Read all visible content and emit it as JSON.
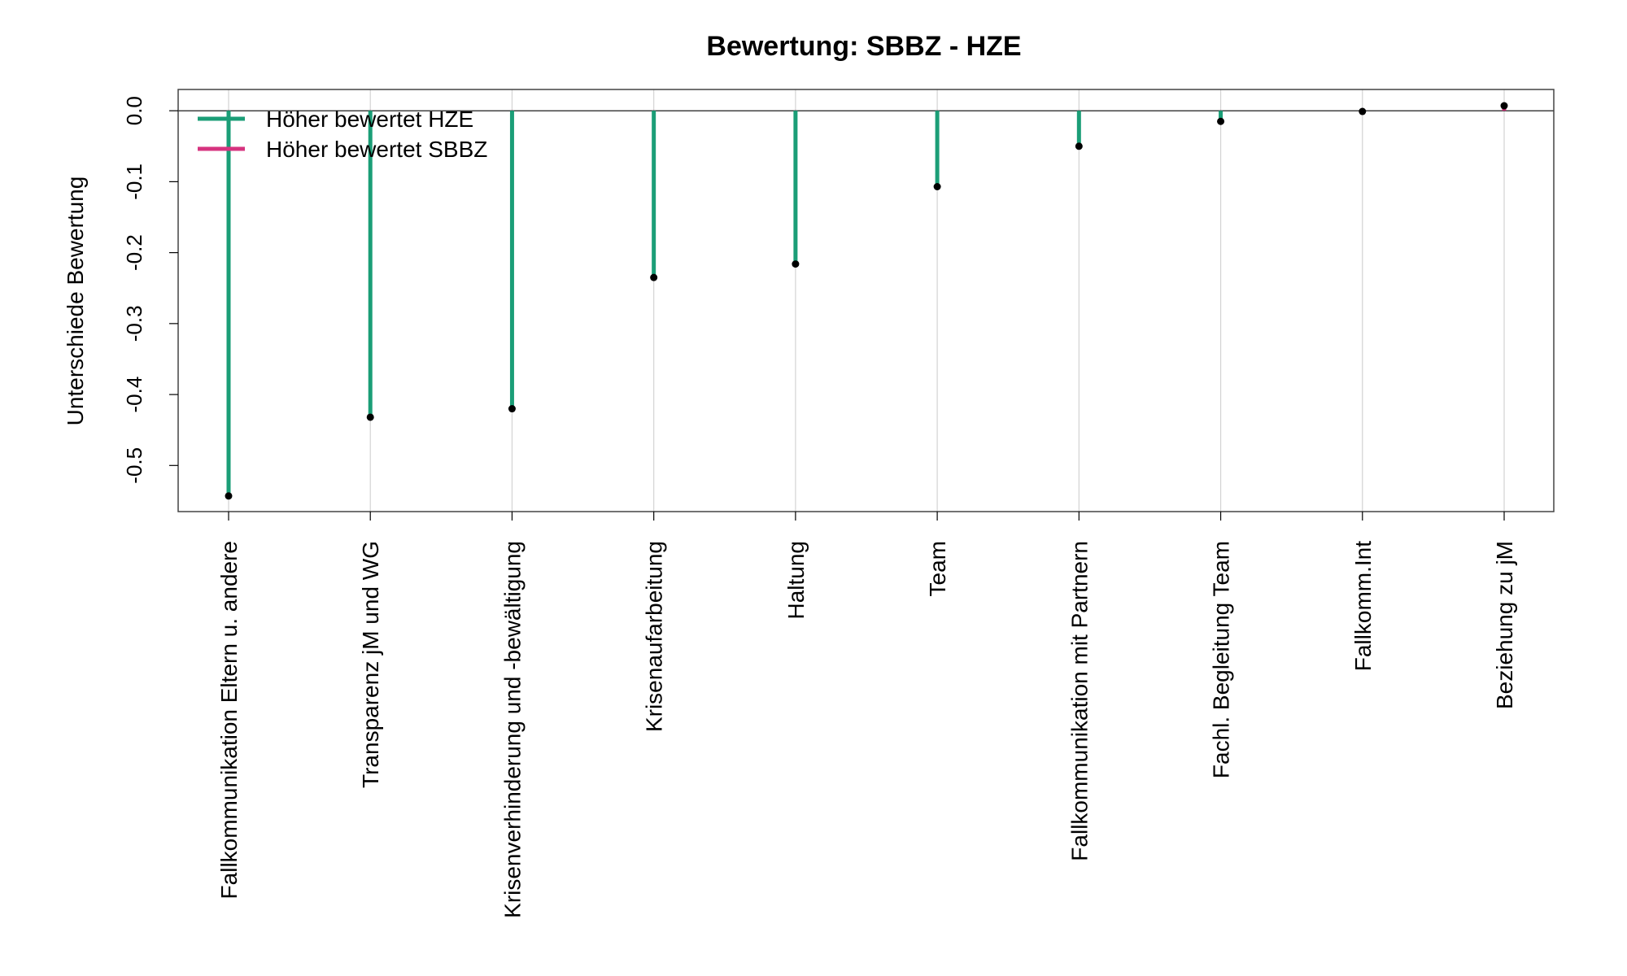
{
  "chart_data": {
    "type": "lollipop",
    "title": "Bewertung: SBBZ - HZE",
    "xlabel": "",
    "ylabel": "Unterschiede Bewertung",
    "ylim": [
      -0.565,
      0.03
    ],
    "yticks": [
      0.0,
      -0.1,
      -0.2,
      -0.3,
      -0.4,
      -0.5
    ],
    "ytick_labels": [
      "0.0",
      "-0.1",
      "-0.2",
      "-0.3",
      "-0.4",
      "-0.5"
    ],
    "categories": [
      "Fallkommunikation Eltern u. andere",
      "Transparenz jM und WG",
      "Krisenverhinderung und -bewältigung",
      "Krisenaufarbeitung",
      "Haltung",
      "Team",
      "Fallkommunikation mit Partnern",
      "Fachl. Begleitung Team",
      "Fallkomm.Int",
      "Beziehung zu jM"
    ],
    "values": [
      -0.543,
      -0.432,
      -0.42,
      -0.235,
      -0.216,
      -0.107,
      -0.05,
      -0.015,
      -0.001,
      0.007
    ],
    "legend": {
      "placement": "top-left",
      "entries": [
        {
          "label": "Höher bewertet HZE",
          "color": "#1B9E77"
        },
        {
          "label": "Höher bewertet SBBZ",
          "color": "#D6337F"
        }
      ]
    },
    "colors": {
      "negative": "#1B9E77",
      "positive": "#D6337F",
      "point": "#000000",
      "grid": "#d3d3d3"
    },
    "grid": "vertical"
  }
}
